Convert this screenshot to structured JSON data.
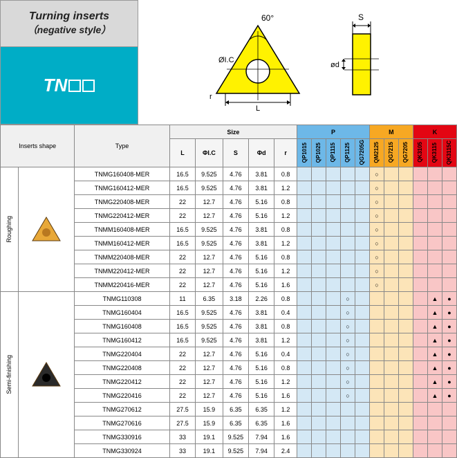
{
  "header": {
    "title_line1": "Turning inserts",
    "title_line2": "（negative style）",
    "code_prefix": "TN"
  },
  "diagram": {
    "angle_label": "60°",
    "diameter_ic": "ØI.C",
    "radius": "r",
    "length": "L",
    "thickness": "S",
    "hole": "ød"
  },
  "table_headers": {
    "inserts_shape": "Inserts shape",
    "type": "Type",
    "size": "Size",
    "P": "P",
    "M": "M",
    "K": "K",
    "size_cols": [
      "L",
      "ΦI.C",
      "S",
      "Φd",
      "r"
    ],
    "p_cols": [
      "QP1015",
      "QP1025",
      "QP1115",
      "QP1125",
      "QG7205G"
    ],
    "m_cols": [
      "QM2125",
      "QG7215",
      "QG7205"
    ],
    "k_cols": [
      "QK3105",
      "QK3115",
      "QK3115C"
    ]
  },
  "groups": [
    {
      "label": "Roughing",
      "shape_color": "gold",
      "rows": [
        {
          "type": "TNMG160408-MER",
          "L": "16.5",
          "IC": "9.525",
          "S": "4.76",
          "d": "3.81",
          "r": "0.8",
          "marks": {
            "m1": "○"
          }
        },
        {
          "type": "TNMG160412-MER",
          "L": "16.5",
          "IC": "9.525",
          "S": "4.76",
          "d": "3.81",
          "r": "1.2",
          "marks": {
            "m1": "○"
          }
        },
        {
          "type": "TNMG220408-MER",
          "L": "22",
          "IC": "12.7",
          "S": "4.76",
          "d": "5.16",
          "r": "0.8",
          "marks": {
            "m1": "○"
          }
        },
        {
          "type": "TNMG220412-MER",
          "L": "22",
          "IC": "12.7",
          "S": "4.76",
          "d": "5.16",
          "r": "1.2",
          "marks": {
            "m1": "○"
          }
        },
        {
          "type": "TNMM160408-MER",
          "L": "16.5",
          "IC": "9.525",
          "S": "4.76",
          "d": "3.81",
          "r": "0.8",
          "marks": {
            "m1": "○"
          }
        },
        {
          "type": "TNMM160412-MER",
          "L": "16.5",
          "IC": "9.525",
          "S": "4.76",
          "d": "3.81",
          "r": "1.2",
          "marks": {
            "m1": "○"
          }
        },
        {
          "type": "TNMM220408-MER",
          "L": "22",
          "IC": "12.7",
          "S": "4.76",
          "d": "5.16",
          "r": "0.8",
          "marks": {
            "m1": "○"
          }
        },
        {
          "type": "TNMM220412-MER",
          "L": "22",
          "IC": "12.7",
          "S": "4.76",
          "d": "5.16",
          "r": "1.2",
          "marks": {
            "m1": "○"
          }
        },
        {
          "type": "TNMM220416-MER",
          "L": "22",
          "IC": "12.7",
          "S": "4.76",
          "d": "5.16",
          "r": "1.6",
          "marks": {
            "m1": "○"
          }
        }
      ]
    },
    {
      "label": "Semi-finishing",
      "shape_color": "dark",
      "rows": [
        {
          "type": "TNMG110308",
          "L": "11",
          "IC": "6.35",
          "S": "3.18",
          "d": "2.26",
          "r": "0.8",
          "marks": {
            "p4": "○",
            "k2": "▲",
            "k3": "●"
          }
        },
        {
          "type": "TNMG160404",
          "L": "16.5",
          "IC": "9.525",
          "S": "4.76",
          "d": "3.81",
          "r": "0.4",
          "marks": {
            "p4": "○",
            "k2": "▲",
            "k3": "●"
          }
        },
        {
          "type": "TNMG160408",
          "L": "16.5",
          "IC": "9.525",
          "S": "4.76",
          "d": "3.81",
          "r": "0.8",
          "marks": {
            "p4": "○",
            "k2": "▲",
            "k3": "●"
          }
        },
        {
          "type": "TNMG160412",
          "L": "16.5",
          "IC": "9.525",
          "S": "4.76",
          "d": "3.81",
          "r": "1.2",
          "marks": {
            "p4": "○",
            "k2": "▲",
            "k3": "●"
          }
        },
        {
          "type": "TNMG220404",
          "L": "22",
          "IC": "12.7",
          "S": "4.76",
          "d": "5.16",
          "r": "0.4",
          "marks": {
            "p4": "○",
            "k2": "▲",
            "k3": "●"
          }
        },
        {
          "type": "TNMG220408",
          "L": "22",
          "IC": "12.7",
          "S": "4.76",
          "d": "5.16",
          "r": "0.8",
          "marks": {
            "p4": "○",
            "k2": "▲",
            "k3": "●"
          }
        },
        {
          "type": "TNMG220412",
          "L": "22",
          "IC": "12.7",
          "S": "4.76",
          "d": "5.16",
          "r": "1.2",
          "marks": {
            "p4": "○",
            "k2": "▲",
            "k3": "●"
          }
        },
        {
          "type": "TNMG220416",
          "L": "22",
          "IC": "12.7",
          "S": "4.76",
          "d": "5.16",
          "r": "1.6",
          "marks": {
            "p4": "○",
            "k2": "▲",
            "k3": "●"
          }
        },
        {
          "type": "TNMG270612",
          "L": "27.5",
          "IC": "15.9",
          "S": "6.35",
          "d": "6.35",
          "r": "1.2",
          "marks": {}
        },
        {
          "type": "TNMG270616",
          "L": "27.5",
          "IC": "15.9",
          "S": "6.35",
          "d": "6.35",
          "r": "1.6",
          "marks": {}
        },
        {
          "type": "TNMG330916",
          "L": "33",
          "IC": "19.1",
          "S": "9.525",
          "d": "7.94",
          "r": "1.6",
          "marks": {}
        },
        {
          "type": "TNMG330924",
          "L": "33",
          "IC": "19.1",
          "S": "9.525",
          "d": "7.94",
          "r": "2.4",
          "marks": {}
        }
      ]
    }
  ],
  "colors": {
    "header_bg": "#d9d9d9",
    "code_bg": "#00adc6",
    "p_bg": "#d4e8f5",
    "m_bg": "#fce4b8",
    "k_bg": "#f9c6c6",
    "p_hdr": "#6db8e8",
    "m_hdr": "#f7a823",
    "k_hdr": "#e30613",
    "insert_gold": "#e8a838",
    "insert_dark": "#2a2a2a",
    "diagram_fill": "#fff200"
  }
}
